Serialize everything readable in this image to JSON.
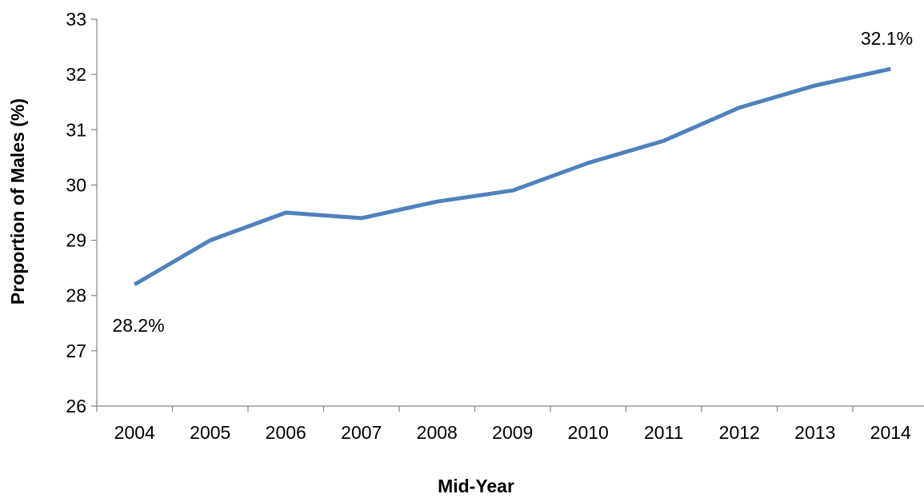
{
  "chart_data": {
    "type": "line",
    "title": "",
    "xlabel": "Mid-Year",
    "ylabel": "Proportion of Males (%)",
    "categories": [
      "2004",
      "2005",
      "2006",
      "2007",
      "2008",
      "2009",
      "2010",
      "2011",
      "2012",
      "2013",
      "2014"
    ],
    "series": [
      {
        "values": [
          28.2,
          29.0,
          29.5,
          29.4,
          29.7,
          29.9,
          30.4,
          30.8,
          31.4,
          31.8,
          32.1
        ],
        "color": "#4F81BD"
      }
    ],
    "ylim": [
      26,
      33
    ],
    "yticks": [
      "26",
      "27",
      "28",
      "29",
      "30",
      "31",
      "32",
      "33"
    ],
    "data_labels": [
      {
        "category": "2004",
        "text": "28.2%",
        "position": "below"
      },
      {
        "category": "2014",
        "text": "32.1%",
        "position": "above"
      }
    ],
    "grid": false,
    "legend": "none"
  }
}
